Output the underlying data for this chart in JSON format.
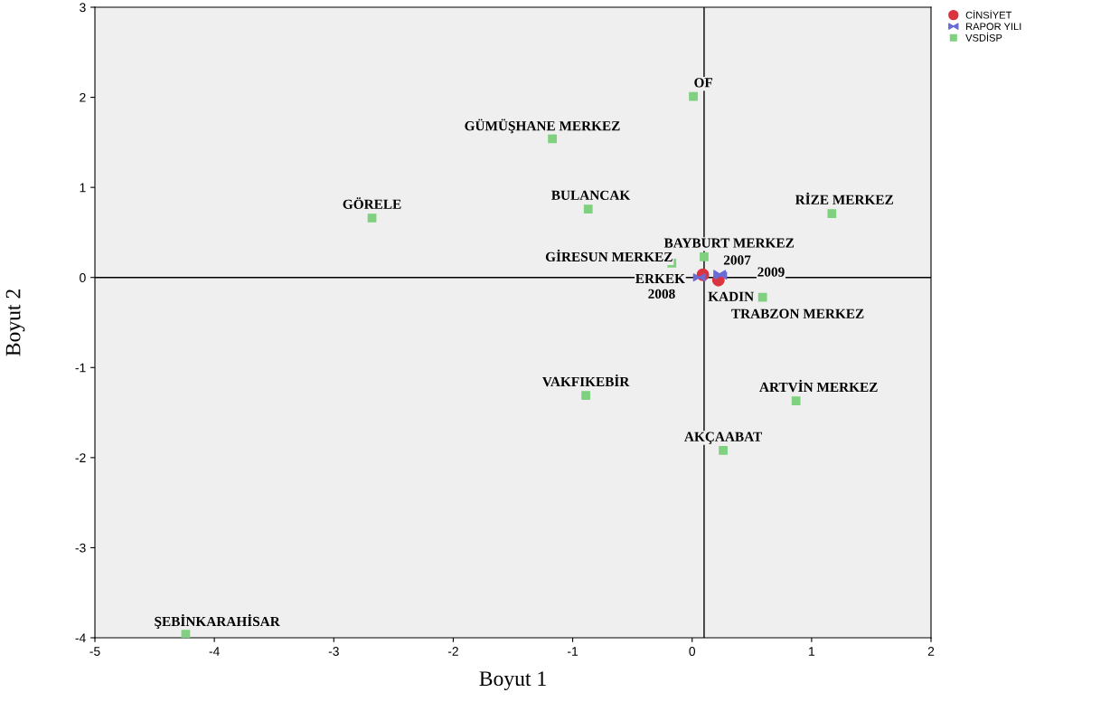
{
  "chart_data": {
    "type": "scatter",
    "xlabel": "Boyut 1",
    "ylabel": "Boyut 2",
    "xlim": [
      -5,
      2
    ],
    "ylim": [
      -4,
      3
    ],
    "xticks": [
      -5,
      -4,
      -3,
      -2,
      -1,
      0,
      1,
      2
    ],
    "yticks": [
      -4,
      -3,
      -2,
      -1,
      0,
      1,
      2,
      3
    ],
    "grid": false,
    "legend": "top right",
    "ref_lines": [
      {
        "axis": "x",
        "value": 0.1,
        "color": "#000000"
      },
      {
        "axis": "y",
        "value": 0,
        "color": "#000000"
      }
    ],
    "series": [
      {
        "name": "CİNSİYET",
        "color": "#d9343f",
        "marker": "circle",
        "x": [
          0.09,
          0.22
        ],
        "values": [
          0.03,
          -0.03
        ]
      },
      {
        "name": "RAPOR YILI",
        "color": "#6b6bd6",
        "marker": "cross",
        "x": [
          0.23,
          0.06,
          0.24
        ],
        "values": [
          0.04,
          0.0,
          0.02
        ]
      },
      {
        "name": "VSDİSP",
        "color": "#7fd17f",
        "marker": "square",
        "x": [
          0.01,
          -1.17,
          -2.68,
          -0.87,
          1.17,
          0.1,
          -0.17,
          0.59,
          -0.89,
          0.87,
          0.26,
          -4.24
        ],
        "values": [
          2.01,
          1.54,
          0.66,
          0.76,
          0.71,
          0.23,
          0.16,
          -0.22,
          -1.31,
          -1.37,
          -1.92,
          -3.96
        ]
      }
    ],
    "annotations": [
      {
        "text": "ERKEK",
        "x": 0.09,
        "y": 0.03
      },
      {
        "text": "KADIN",
        "x": 0.22,
        "y": -0.03
      },
      {
        "text": "2007",
        "x": 0.23,
        "y": 0.04
      },
      {
        "text": "2008",
        "x": 0.06,
        "y": 0.0
      },
      {
        "text": "2009",
        "x": 0.24,
        "y": 0.02
      },
      {
        "text": "OF",
        "x": 0.01,
        "y": 2.01
      },
      {
        "text": "GÜMÜŞHANE MERKEZ",
        "x": -1.17,
        "y": 1.54
      },
      {
        "text": "GÖRELE",
        "x": -2.68,
        "y": 0.66
      },
      {
        "text": "BULANCAK",
        "x": -0.87,
        "y": 0.76
      },
      {
        "text": "RİZE MERKEZ",
        "x": 1.17,
        "y": 0.71
      },
      {
        "text": "BAYBURT MERKEZ",
        "x": 0.1,
        "y": 0.23
      },
      {
        "text": "GİRESUN MERKEZ",
        "x": -0.17,
        "y": 0.16
      },
      {
        "text": "TRABZON MERKEZ",
        "x": 0.59,
        "y": -0.22
      },
      {
        "text": "VAKFIKEBİR",
        "x": -0.89,
        "y": -1.31
      },
      {
        "text": "ARTVİN MERKEZ",
        "x": 0.87,
        "y": -1.37
      },
      {
        "text": "AKÇAABAT",
        "x": 0.26,
        "y": -1.92
      },
      {
        "text": "ŞEBİNKARAHİSAR",
        "x": -4.24,
        "y": -3.96
      }
    ]
  }
}
